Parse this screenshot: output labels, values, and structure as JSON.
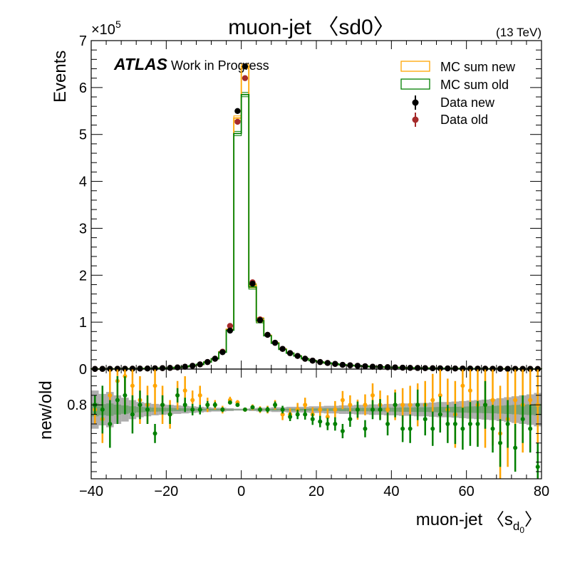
{
  "chart_data": {
    "type": "histogram-with-ratio",
    "title": "muon-jet 〈sd0〉",
    "energy_label": "(13 TeV)",
    "atlas_label": "ATLAS",
    "atlas_sublabel": "Work in Progress",
    "xlabel": "muon-jet 〈s",
    "xlabel_sub": "d",
    "xlabel_subsub": "0",
    "xlabel_end": "〉",
    "ylabel": "Events",
    "ratio_ylabel": "new/old",
    "y_multiplier": "×10",
    "y_multiplier_exp": "5",
    "xlim": [
      -40,
      80
    ],
    "ylim": [
      0,
      7
    ],
    "ratio_ylim": [
      0.645,
      0.875
    ],
    "x_ticks": [
      -40,
      -20,
      0,
      20,
      40,
      60,
      80
    ],
    "y_ticks": [
      0,
      1,
      2,
      3,
      4,
      5,
      6,
      7
    ],
    "ratio_ticks": [
      0.8
    ],
    "bin_edges": [
      -40,
      -38,
      -36,
      -34,
      -32,
      -30,
      -28,
      -26,
      -24,
      -22,
      -20,
      -18,
      -16,
      -14,
      -12,
      -10,
      -8,
      -6,
      -4,
      -2,
      0,
      2,
      4,
      6,
      8,
      10,
      12,
      14,
      16,
      18,
      20,
      22,
      24,
      26,
      28,
      30,
      32,
      34,
      36,
      38,
      40,
      42,
      44,
      46,
      48,
      50,
      52,
      54,
      56,
      58,
      60,
      62,
      64,
      66,
      68,
      70,
      72,
      74,
      76,
      78,
      80
    ],
    "bin_centers": [
      -39,
      -37,
      -35,
      -33,
      -31,
      -29,
      -27,
      -25,
      -23,
      -21,
      -19,
      -17,
      -15,
      -13,
      -11,
      -9,
      -7,
      -5,
      -3,
      -1,
      1,
      3,
      5,
      7,
      9,
      11,
      13,
      15,
      17,
      19,
      21,
      23,
      25,
      27,
      29,
      31,
      33,
      35,
      37,
      39,
      41,
      43,
      45,
      47,
      49,
      51,
      53,
      55,
      57,
      59,
      61,
      63,
      65,
      67,
      69,
      71,
      73,
      75,
      77,
      79
    ],
    "series": [
      {
        "name": "MC sum new",
        "kind": "step",
        "color": "#ffa500",
        "values": [
          0.003,
          0.004,
          0.005,
          0.006,
          0.007,
          0.008,
          0.01,
          0.012,
          0.015,
          0.02,
          0.025,
          0.035,
          0.05,
          0.07,
          0.1,
          0.15,
          0.22,
          0.37,
          0.85,
          5.35,
          6.45,
          1.78,
          1.05,
          0.72,
          0.56,
          0.43,
          0.34,
          0.28,
          0.22,
          0.18,
          0.15,
          0.13,
          0.11,
          0.09,
          0.08,
          0.07,
          0.06,
          0.05,
          0.045,
          0.04,
          0.035,
          0.03,
          0.026,
          0.023,
          0.02,
          0.018,
          0.016,
          0.014,
          0.012,
          0.011,
          0.01,
          0.009,
          0.008,
          0.007,
          0.006,
          0.005,
          0.005,
          0.004,
          0.004,
          0.003
        ]
      },
      {
        "name": "MC sum old",
        "kind": "step",
        "color": "#008000",
        "values": [
          0.003,
          0.004,
          0.005,
          0.006,
          0.007,
          0.008,
          0.01,
          0.012,
          0.015,
          0.02,
          0.025,
          0.035,
          0.05,
          0.07,
          0.1,
          0.15,
          0.22,
          0.36,
          0.83,
          5.02,
          5.85,
          1.75,
          1.03,
          0.71,
          0.55,
          0.42,
          0.34,
          0.28,
          0.22,
          0.18,
          0.15,
          0.13,
          0.11,
          0.09,
          0.08,
          0.07,
          0.06,
          0.05,
          0.045,
          0.04,
          0.035,
          0.03,
          0.026,
          0.023,
          0.02,
          0.018,
          0.016,
          0.014,
          0.012,
          0.011,
          0.01,
          0.009,
          0.008,
          0.007,
          0.006,
          0.005,
          0.005,
          0.004,
          0.004,
          0.003
        ]
      },
      {
        "name": "Data new",
        "kind": "points",
        "color": "#000000",
        "values": [
          0.003,
          0.004,
          0.005,
          0.006,
          0.007,
          0.008,
          0.01,
          0.012,
          0.015,
          0.02,
          0.025,
          0.035,
          0.05,
          0.07,
          0.1,
          0.15,
          0.22,
          0.36,
          0.82,
          5.5,
          6.45,
          1.82,
          1.04,
          0.73,
          0.56,
          0.43,
          0.34,
          0.28,
          0.22,
          0.18,
          0.15,
          0.13,
          0.11,
          0.09,
          0.08,
          0.07,
          0.06,
          0.05,
          0.045,
          0.04,
          0.035,
          0.03,
          0.026,
          0.023,
          0.02,
          0.018,
          0.016,
          0.014,
          0.012,
          0.011,
          0.01,
          0.009,
          0.008,
          0.007,
          0.006,
          0.005,
          0.005,
          0.004,
          0.004,
          0.003
        ]
      },
      {
        "name": "Data old",
        "kind": "points",
        "color": "#a52a2a",
        "values": [
          0.003,
          0.004,
          0.005,
          0.006,
          0.007,
          0.008,
          0.01,
          0.012,
          0.015,
          0.02,
          0.025,
          0.035,
          0.05,
          0.07,
          0.1,
          0.15,
          0.22,
          0.37,
          0.92,
          5.27,
          6.2,
          1.85,
          1.06,
          0.73,
          0.56,
          0.43,
          0.34,
          0.28,
          0.22,
          0.18,
          0.15,
          0.13,
          0.11,
          0.09,
          0.08,
          0.07,
          0.06,
          0.05,
          0.045,
          0.04,
          0.035,
          0.03,
          0.026,
          0.023,
          0.02,
          0.018,
          0.016,
          0.014,
          0.012,
          0.011,
          0.01,
          0.009,
          0.008,
          0.007,
          0.006,
          0.005,
          0.005,
          0.004,
          0.004,
          0.003
        ]
      }
    ],
    "ratio_band": {
      "color": "#a0a0a0",
      "inner_color": "#6a9c6a",
      "center": 0.79,
      "halfwidth": [
        0.04,
        0.033,
        0.037,
        0.03,
        0.025,
        0.02,
        0.016,
        0.014,
        0.012,
        0.011,
        0.01,
        0.009,
        0.008,
        0.007,
        0.006,
        0.005,
        0.004,
        0.004,
        0.003,
        0.002,
        0.002,
        0.003,
        0.004,
        0.004,
        0.005,
        0.005,
        0.006,
        0.006,
        0.006,
        0.007,
        0.007,
        0.008,
        0.008,
        0.009,
        0.009,
        0.01,
        0.01,
        0.011,
        0.011,
        0.012,
        0.012,
        0.013,
        0.013,
        0.014,
        0.014,
        0.015,
        0.016,
        0.016,
        0.017,
        0.018,
        0.019,
        0.02,
        0.021,
        0.022,
        0.024,
        0.026,
        0.028,
        0.03,
        0.032,
        0.035
      ]
    },
    "ratio_series": [
      {
        "name": "Data ratio",
        "color": "#ffa500",
        "values": [
          0.79,
          0.77,
          0.82,
          0.85,
          0.86,
          0.84,
          0.81,
          0.8,
          0.84,
          0.8,
          0.78,
          0.82,
          0.83,
          0.81,
          0.82,
          0.8,
          0.8,
          0.79,
          0.81,
          0.805,
          0.79,
          0.795,
          0.79,
          0.79,
          0.8,
          0.78,
          0.78,
          0.79,
          0.8,
          0.78,
          0.79,
          0.775,
          0.79,
          0.81,
          0.8,
          0.79,
          0.8,
          0.82,
          0.8,
          0.79,
          0.8,
          0.8,
          0.8,
          0.8,
          0.8,
          0.81,
          0.82,
          0.79,
          0.78,
          0.84,
          0.83,
          0.8,
          0.8,
          0.81,
          0.74,
          0.77,
          0.81,
          0.8,
          0.81,
          0.8
        ],
        "err": [
          0.03,
          0.05,
          0.07,
          0.08,
          0.07,
          0.06,
          0.05,
          0.04,
          0.06,
          0.04,
          0.03,
          0.03,
          0.03,
          0.02,
          0.02,
          0.015,
          0.01,
          0.008,
          0.007,
          0.005,
          0.004,
          0.006,
          0.007,
          0.008,
          0.01,
          0.012,
          0.013,
          0.014,
          0.015,
          0.015,
          0.016,
          0.017,
          0.018,
          0.019,
          0.02,
          0.021,
          0.022,
          0.025,
          0.03,
          0.03,
          0.032,
          0.035,
          0.04,
          0.045,
          0.05,
          0.055,
          0.06,
          0.065,
          0.07,
          0.075,
          0.08,
          0.085,
          0.09,
          0.095,
          0.1,
          0.1,
          0.1,
          0.1,
          0.1,
          0.1
        ]
      },
      {
        "name": "MC ratio",
        "color": "#008000",
        "values": [
          0.8,
          0.79,
          0.76,
          0.81,
          0.82,
          0.78,
          0.8,
          0.79,
          0.74,
          0.8,
          0.78,
          0.82,
          0.8,
          0.79,
          0.79,
          0.8,
          0.8,
          0.79,
          0.805,
          0.8,
          0.79,
          0.795,
          0.79,
          0.79,
          0.8,
          0.79,
          0.775,
          0.78,
          0.78,
          0.77,
          0.765,
          0.76,
          0.76,
          0.745,
          0.77,
          0.79,
          0.75,
          0.79,
          0.79,
          0.76,
          0.8,
          0.75,
          0.75,
          0.8,
          0.77,
          0.75,
          0.78,
          0.76,
          0.76,
          0.75,
          0.76,
          0.76,
          0.8,
          0.75,
          0.72,
          0.76,
          0.71,
          0.77,
          0.75,
          0.67
        ],
        "err": [
          0.02,
          0.05,
          0.05,
          0.05,
          0.04,
          0.04,
          0.03,
          0.03,
          0.02,
          0.02,
          0.02,
          0.015,
          0.015,
          0.012,
          0.01,
          0.008,
          0.006,
          0.005,
          0.004,
          0.003,
          0.003,
          0.004,
          0.005,
          0.006,
          0.007,
          0.008,
          0.009,
          0.01,
          0.011,
          0.012,
          0.012,
          0.013,
          0.014,
          0.015,
          0.016,
          0.017,
          0.018,
          0.02,
          0.022,
          0.024,
          0.026,
          0.028,
          0.03,
          0.032,
          0.034,
          0.036,
          0.038,
          0.04,
          0.042,
          0.044,
          0.046,
          0.048,
          0.05,
          0.05,
          0.05,
          0.05,
          0.05,
          0.05,
          0.05,
          0.05
        ]
      }
    ]
  }
}
